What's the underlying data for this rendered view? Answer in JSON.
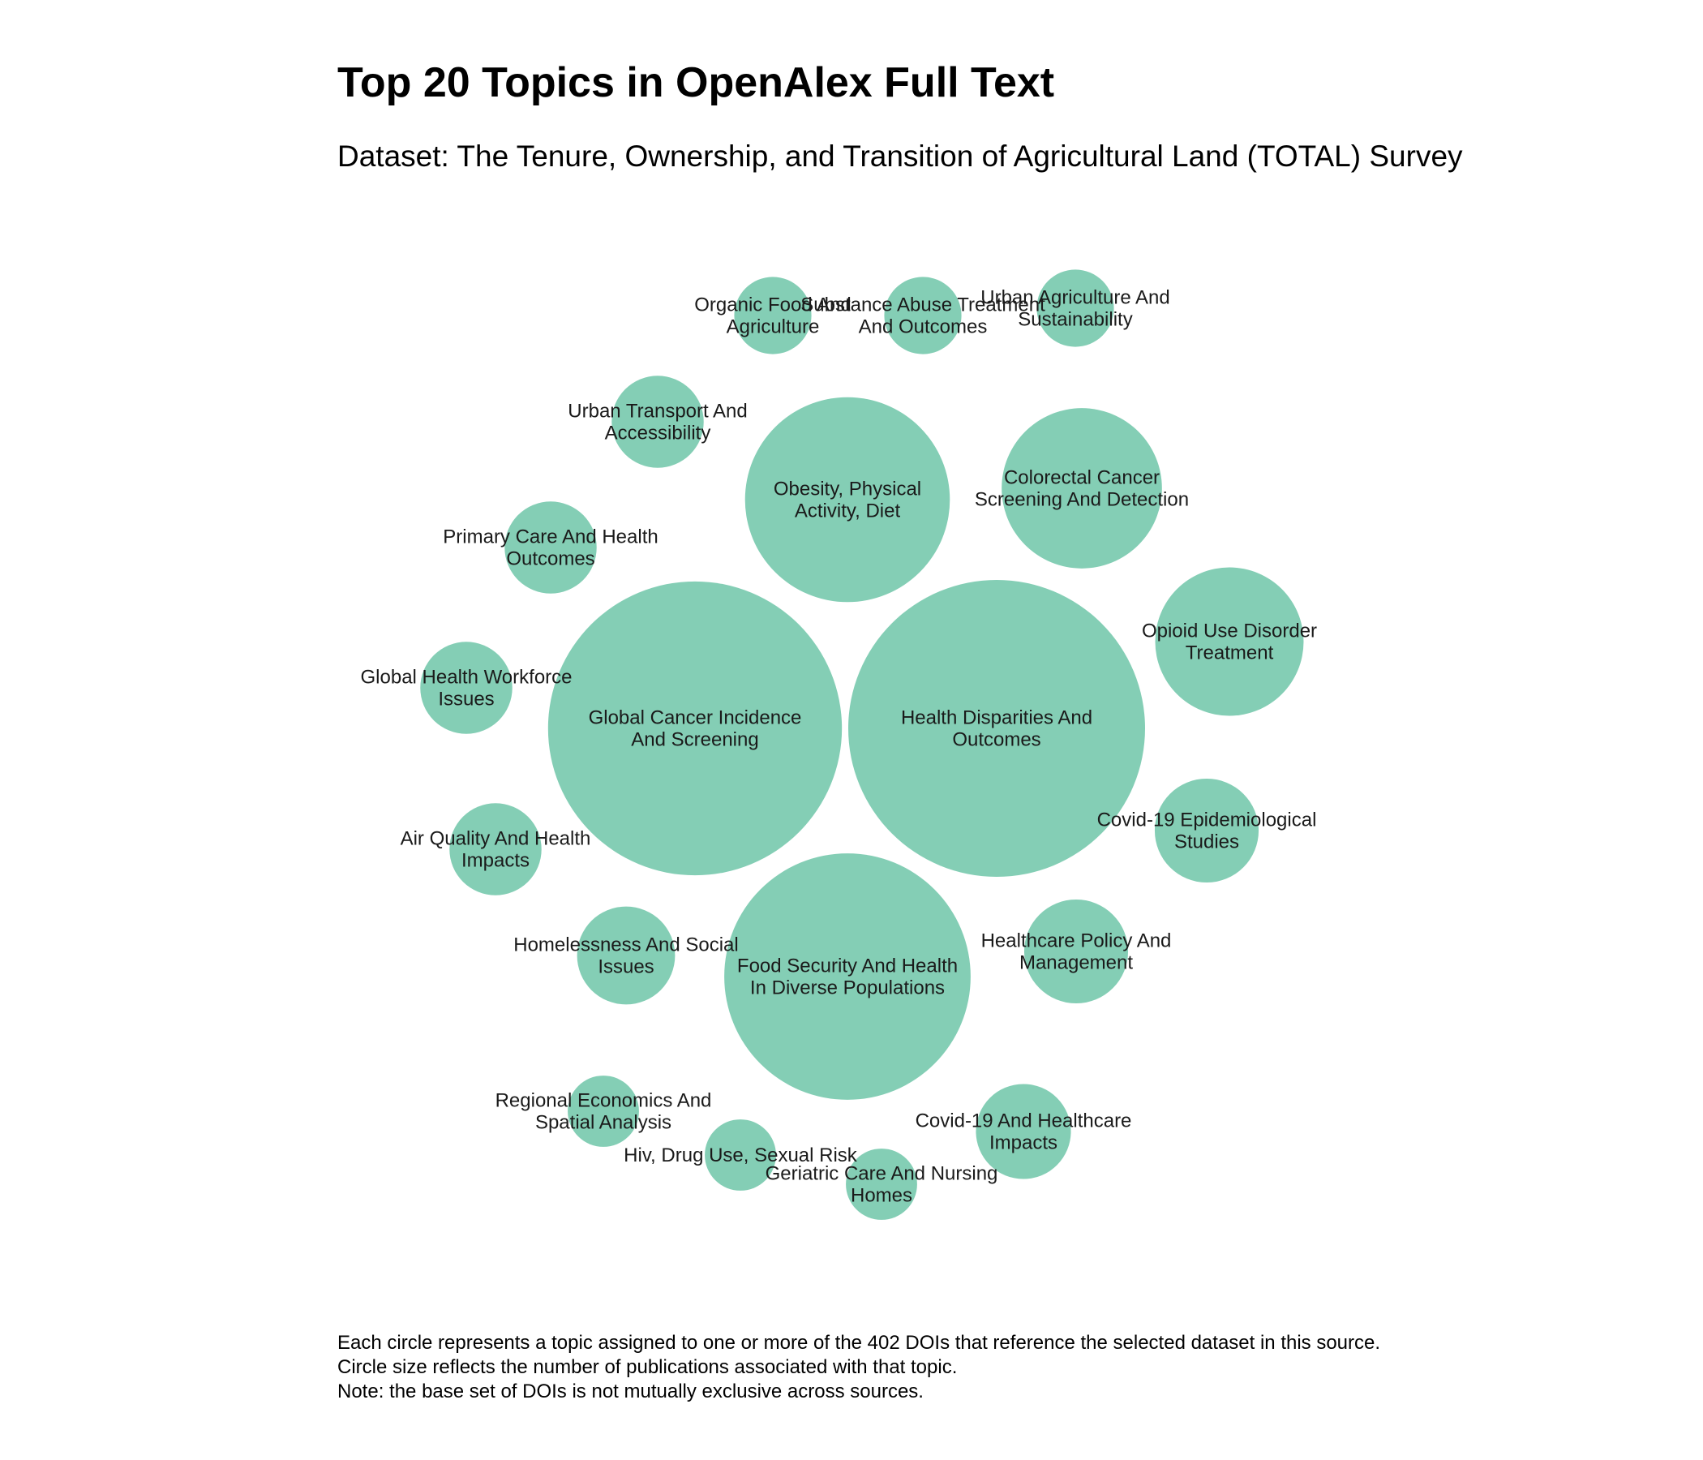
{
  "title": "Top 20 Topics in OpenAlex Full Text",
  "subtitle": "Dataset: The Tenure, Ownership, and Transition of Agricultural Land (TOTAL) Survey",
  "footnotes": [
    "Each circle represents a topic assigned to one or more of the 402 DOIs that reference the selected dataset in this source.",
    "Circle size reflects the number of publications associated with that topic.",
    "Note: the base set of DOIs is not mutually exclusive across sources."
  ],
  "colors": {
    "bubble": "#84ceb5",
    "label": "#1a1a1a"
  },
  "chart_data": {
    "type": "packed-bubble",
    "title": "Top 20 Topics in OpenAlex Full Text",
    "subtitle": "Dataset: The Tenure, Ownership, and Transition of Agricultural Land (TOTAL) Survey",
    "total_dois": 402,
    "size_meaning": "Circle size reflects the number of publications associated with that topic.",
    "topics": [
      {
        "label": "Health Disparities And Outcomes",
        "relative_size": 1.0
      },
      {
        "label": "Global Cancer Incidence And Screening",
        "relative_size": 0.99
      },
      {
        "label": "Food Security And Health In Diverse Populations",
        "relative_size": 0.83
      },
      {
        "label": "Obesity, Physical Activity, Diet",
        "relative_size": 0.69
      },
      {
        "label": "Colorectal Cancer Screening And Detection",
        "relative_size": 0.54
      },
      {
        "label": "Opioid Use Disorder Treatment",
        "relative_size": 0.5
      },
      {
        "label": "Covid-19 Epidemiological Studies",
        "relative_size": 0.35
      },
      {
        "label": "Healthcare Policy And Management",
        "relative_size": 0.35
      },
      {
        "label": "Homelessness And Social Issues",
        "relative_size": 0.33
      },
      {
        "label": "Covid-19 And Healthcare Impacts",
        "relative_size": 0.32
      },
      {
        "label": "Urban Transport And Accessibility",
        "relative_size": 0.31
      },
      {
        "label": "Primary Care And Health Outcomes",
        "relative_size": 0.31
      },
      {
        "label": "Global Health Workforce Issues",
        "relative_size": 0.31
      },
      {
        "label": "Air Quality And Health Impacts",
        "relative_size": 0.31
      },
      {
        "label": "Urban Agriculture And Sustainability",
        "relative_size": 0.26
      },
      {
        "label": "Organic Food And Agriculture",
        "relative_size": 0.26
      },
      {
        "label": "Substance Abuse Treatment And Outcomes",
        "relative_size": 0.26
      },
      {
        "label": "Regional Economics And Spatial Analysis",
        "relative_size": 0.24
      },
      {
        "label": "Hiv, Drug Use, Sexual Risk",
        "relative_size": 0.24
      },
      {
        "label": "Geriatric Care And Nursing Homes",
        "relative_size": 0.24
      }
    ]
  }
}
